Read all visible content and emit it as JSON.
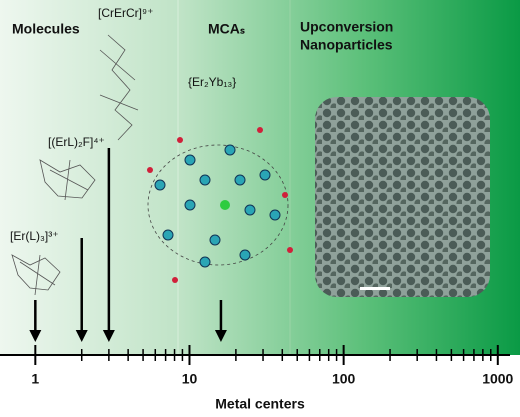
{
  "chart_data": {
    "type": "arrows",
    "regions": [
      "Molecules",
      "MCAₛ",
      "Upconversion",
      "Nanoparticles"
    ],
    "categories": [
      "[Er(L)₃]³⁺",
      "[(ErL)₂F]⁴⁺",
      "[CrErCr]⁹⁺",
      "{Er₂Yb₁₃}"
    ],
    "x": [
      1,
      2,
      3,
      16
    ],
    "xlabel": "Metal centers",
    "xscale": "log",
    "xlim": [
      0.59,
      1200
    ],
    "xticks": [
      1,
      10,
      100,
      1000
    ],
    "xminorticks": [
      2,
      3,
      4,
      5,
      6,
      7,
      8,
      9,
      20,
      30,
      40,
      50,
      60,
      70,
      80,
      90,
      200,
      300,
      400,
      500,
      600,
      700,
      800,
      900
    ],
    "color": "#000000"
  }
}
